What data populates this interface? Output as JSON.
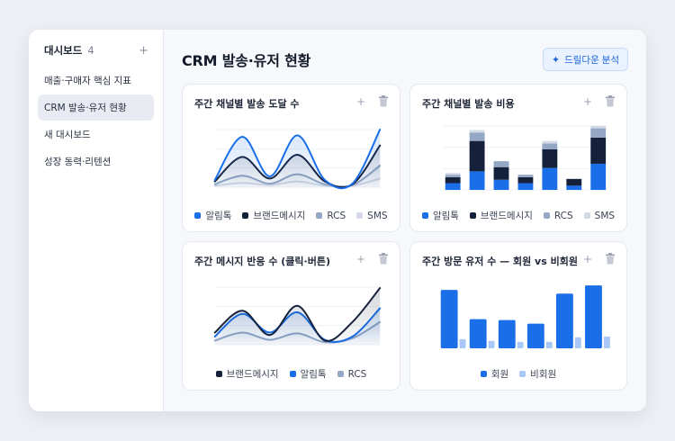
{
  "sidebar": {
    "title": "대시보드",
    "count": "4",
    "add_label": "+",
    "items": [
      {
        "label": "매출·구매자 핵심 지표"
      },
      {
        "label": "CRM 발송·유저 현황"
      },
      {
        "label": "새 대시보드"
      },
      {
        "label": "성장 동력·리텐션"
      }
    ]
  },
  "header": {
    "title": "CRM 발송·유저 현황",
    "drill_label": "드릴다운 분석",
    "drill_icon": "sparkle-icon"
  },
  "colors": {
    "alimtalk": "#1a6fe8",
    "brand": "#15203a",
    "rcs": "#94a8c6",
    "sms": "#d3dae6",
    "member": "#1a6fe8",
    "nonmember": "#a9c8f5"
  },
  "cards": {
    "c1": {
      "title": "주간 채널별 발송 도달 수",
      "legend": [
        "알림톡",
        "브랜드메시지",
        "RCS",
        "SMS"
      ]
    },
    "c2": {
      "title": "주간 채널별 발송 비용",
      "legend": [
        "알림톡",
        "브랜드메시지",
        "RCS",
        "SMS"
      ]
    },
    "c3": {
      "title": "주간 메시지 반응 수 (클릭·버튼)",
      "legend": [
        "브랜드메시지",
        "알림톡",
        "RCS"
      ]
    },
    "c4": {
      "title": "주간 방문 유저 수 — 회원 vs 비회원",
      "legend": [
        "회원",
        "비회원"
      ]
    },
    "add_label": "+"
  },
  "chart_data": [
    {
      "type": "area",
      "series": [
        {
          "name": "알림톡",
          "values": [
            10,
            70,
            15,
            72,
            10,
            5,
            80
          ]
        },
        {
          "name": "브랜드메시지",
          "values": [
            8,
            42,
            12,
            45,
            8,
            4,
            58
          ]
        },
        {
          "name": "RCS",
          "values": [
            4,
            16,
            5,
            18,
            4,
            3,
            30
          ]
        },
        {
          "name": "SMS",
          "values": [
            2,
            6,
            3,
            8,
            2,
            2,
            12
          ]
        }
      ],
      "ylim": [
        0,
        90
      ]
    },
    {
      "type": "bar",
      "stacked": true,
      "series": [
        {
          "name": "알림톡",
          "values": [
            8,
            22,
            12,
            8,
            26,
            5,
            31
          ]
        },
        {
          "name": "브랜드메시지",
          "values": [
            7,
            36,
            15,
            7,
            22,
            8,
            31
          ]
        },
        {
          "name": "RCS",
          "values": [
            3,
            10,
            7,
            3,
            7,
            0,
            11
          ]
        },
        {
          "name": "SMS",
          "values": [
            2,
            3,
            0,
            0,
            3,
            0,
            3
          ]
        }
      ],
      "ylim": [
        0,
        80
      ]
    },
    {
      "type": "area",
      "series": [
        {
          "name": "브랜드메시지",
          "values": [
            15,
            42,
            12,
            48,
            5,
            28,
            70
          ]
        },
        {
          "name": "알림톡",
          "values": [
            10,
            38,
            15,
            40,
            6,
            10,
            45
          ]
        },
        {
          "name": "RCS",
          "values": [
            5,
            15,
            6,
            14,
            3,
            8,
            28
          ]
        }
      ],
      "ylim": [
        0,
        80
      ]
    },
    {
      "type": "bar",
      "series": [
        {
          "name": "회원",
          "values": [
            64,
            32,
            31,
            27,
            60,
            69
          ]
        },
        {
          "name": "비회원",
          "values": [
            10,
            8,
            7,
            7,
            12,
            13
          ]
        }
      ],
      "ylim": [
        0,
        75
      ]
    }
  ]
}
